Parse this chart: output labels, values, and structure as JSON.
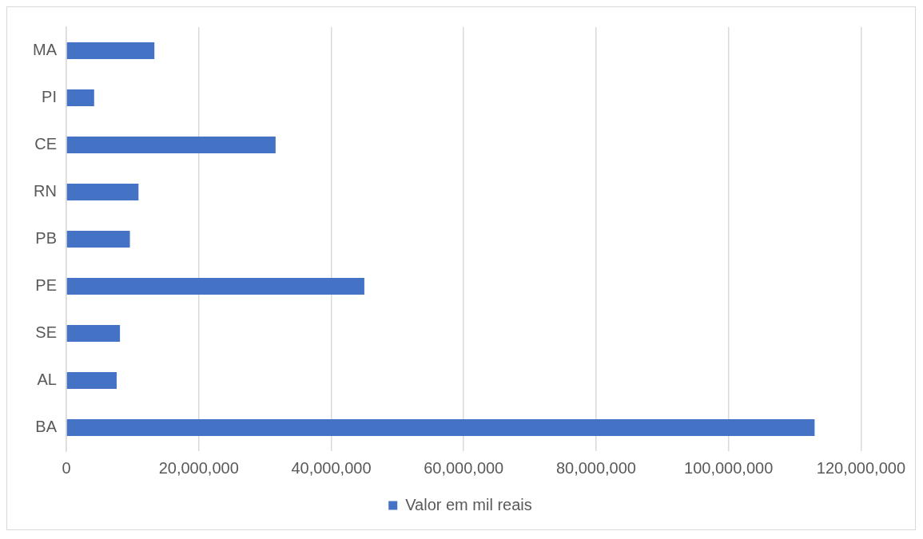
{
  "chart_data": {
    "type": "bar",
    "orientation": "horizontal",
    "categories": [
      "MA",
      "PI",
      "CE",
      "RN",
      "PB",
      "PE",
      "SE",
      "AL",
      "BA"
    ],
    "series": [
      {
        "name": "Valor em mil reais",
        "color": "#4472c4",
        "values": [
          13300000,
          4200000,
          31600000,
          10900000,
          9600000,
          45000000,
          8100000,
          7600000,
          113000000
        ]
      }
    ],
    "xlim": [
      0,
      120000000
    ],
    "xticks": [
      {
        "value": 0,
        "label": "0"
      },
      {
        "value": 20000000,
        "label": "20,000,000"
      },
      {
        "value": 40000000,
        "label": "40,000,000"
      },
      {
        "value": 60000000,
        "label": "60,000,000"
      },
      {
        "value": 80000000,
        "label": "80,000,000"
      },
      {
        "value": 100000000,
        "label": "100,000,000"
      },
      {
        "value": 120000000,
        "label": "120,000,000"
      }
    ],
    "grid": "x",
    "legend": "bottom"
  }
}
